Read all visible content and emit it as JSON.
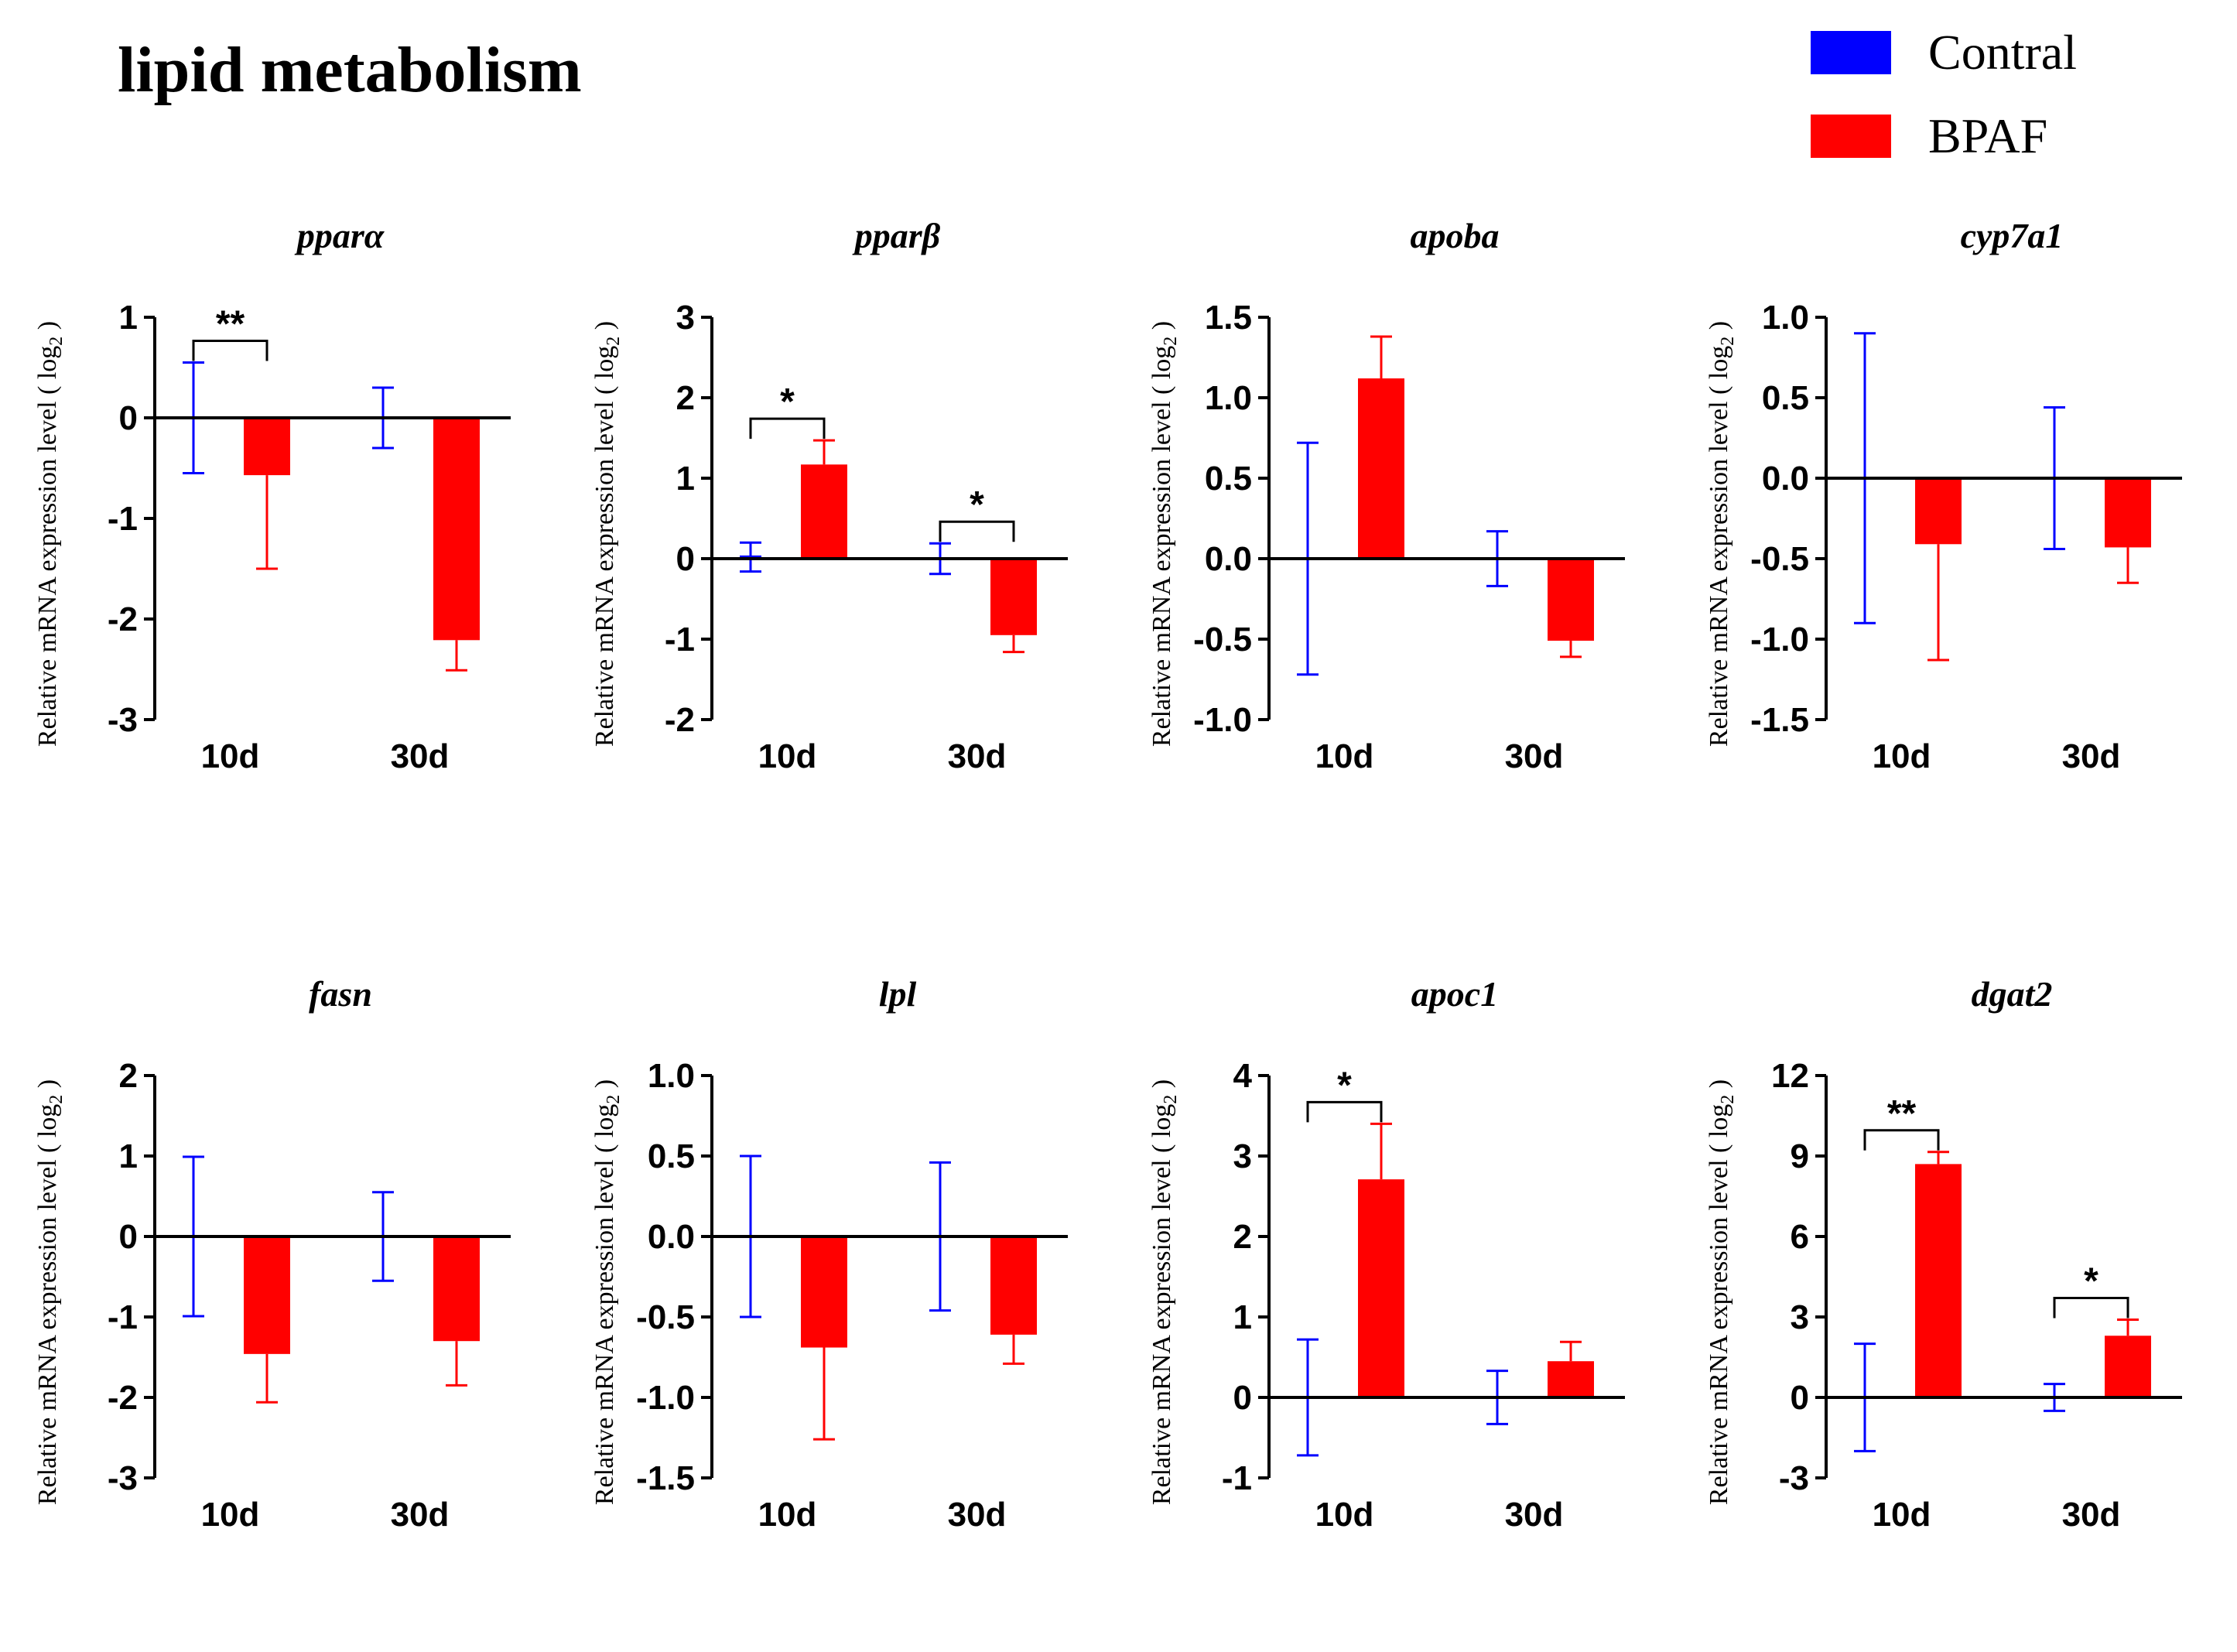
{
  "title": "lipid metabolism",
  "legend": [
    {
      "label": "Contral",
      "color": "#0000FF"
    },
    {
      "label": "BPAF",
      "color": "#FF0000"
    }
  ],
  "colors": {
    "control": "#0000FF",
    "bpaf": "#FF0000",
    "axis": "#000000"
  },
  "chart_data": [
    {
      "type": "bar",
      "title": "pparα",
      "ylabel": "Relative mRNA expression level ( log",
      "ylabel_sub": "2",
      "ylabel_end": " )",
      "categories": [
        "10d",
        "30d"
      ],
      "ylim": [
        -3,
        1
      ],
      "ticks": [
        "-3",
        "-2",
        "-1",
        "0",
        "1"
      ],
      "series": [
        {
          "name": "Contral",
          "values": [
            0,
            0
          ],
          "errors": [
            0.55,
            0.3
          ]
        },
        {
          "name": "BPAF",
          "values": [
            -0.57,
            -2.21
          ],
          "errors": [
            0.93,
            0.3
          ]
        }
      ],
      "significance": [
        {
          "category": "10d",
          "label": "**"
        }
      ]
    },
    {
      "type": "bar",
      "title": "pparβ",
      "ylabel": "Relative mRNA expression level ( log",
      "ylabel_sub": "2",
      "ylabel_end": " )",
      "categories": [
        "10d",
        "30d"
      ],
      "ylim": [
        -2,
        3
      ],
      "ticks": [
        "-2",
        "-1",
        "0",
        "1",
        "2",
        "3"
      ],
      "series": [
        {
          "name": "Contral",
          "values": [
            0.02,
            0
          ],
          "errors": [
            0.18,
            0.19
          ]
        },
        {
          "name": "BPAF",
          "values": [
            1.17,
            -0.95
          ],
          "errors": [
            0.3,
            0.21
          ]
        }
      ],
      "significance": [
        {
          "category": "10d",
          "label": "*"
        },
        {
          "category": "30d",
          "label": "*"
        }
      ]
    },
    {
      "type": "bar",
      "title": "apoba",
      "ylabel": "Relative mRNA expression level ( log",
      "ylabel_sub": "2",
      "ylabel_end": " )",
      "categories": [
        "10d",
        "30d"
      ],
      "ylim": [
        -1.0,
        1.5
      ],
      "ticks": [
        "-1.0",
        "-0.5",
        "0.0",
        "0.5",
        "1.0",
        "1.5"
      ],
      "series": [
        {
          "name": "Contral",
          "values": [
            0,
            0
          ],
          "errors": [
            0.72,
            0.17
          ]
        },
        {
          "name": "BPAF",
          "values": [
            1.12,
            -0.51
          ],
          "errors": [
            0.26,
            0.1
          ]
        }
      ],
      "significance": []
    },
    {
      "type": "bar",
      "title": "cyp7a1",
      "ylabel": "Relative mRNA expression level ( log",
      "ylabel_sub": "2",
      "ylabel_end": " )",
      "categories": [
        "10d",
        "30d"
      ],
      "ylim": [
        -1.5,
        1.0
      ],
      "ticks": [
        "-1.5",
        "-1.0",
        "-0.5",
        "0.0",
        "0.5",
        "1.0"
      ],
      "series": [
        {
          "name": "Contral",
          "values": [
            0,
            0
          ],
          "errors": [
            0.9,
            0.44
          ]
        },
        {
          "name": "BPAF",
          "values": [
            -0.41,
            -0.43
          ],
          "errors": [
            0.72,
            0.22
          ]
        }
      ],
      "significance": []
    },
    {
      "type": "bar",
      "title": "fasn",
      "ylabel": "Relative mRNA expression level ( log",
      "ylabel_sub": "2",
      "ylabel_end": " )",
      "categories": [
        "10d",
        "30d"
      ],
      "ylim": [
        -3,
        2
      ],
      "ticks": [
        "-3",
        "-2",
        "-1",
        "0",
        "1",
        "2"
      ],
      "series": [
        {
          "name": "Contral",
          "values": [
            0,
            0
          ],
          "errors": [
            0.99,
            0.55
          ]
        },
        {
          "name": "BPAF",
          "values": [
            -1.46,
            -1.3
          ],
          "errors": [
            0.6,
            0.55
          ]
        }
      ],
      "significance": []
    },
    {
      "type": "bar",
      "title": "lpl",
      "ylabel": "Relative mRNA expression level ( log",
      "ylabel_sub": "2",
      "ylabel_end": " )",
      "categories": [
        "10d",
        "30d"
      ],
      "ylim": [
        -1.5,
        1.0
      ],
      "ticks": [
        "-1.5",
        "-1.0",
        "-0.5",
        "0.0",
        "0.5",
        "1.0"
      ],
      "series": [
        {
          "name": "Contral",
          "values": [
            0,
            0
          ],
          "errors": [
            0.5,
            0.46
          ]
        },
        {
          "name": "BPAF",
          "values": [
            -0.69,
            -0.61
          ],
          "errors": [
            0.57,
            0.18
          ]
        }
      ],
      "significance": []
    },
    {
      "type": "bar",
      "title": "apoc1",
      "ylabel": "Relative mRNA expression level ( log",
      "ylabel_sub": "2",
      "ylabel_end": " )",
      "categories": [
        "10d",
        "30d"
      ],
      "ylim": [
        -1,
        4
      ],
      "ticks": [
        "-1",
        "0",
        "1",
        "2",
        "3",
        "4"
      ],
      "series": [
        {
          "name": "Contral",
          "values": [
            0,
            0
          ],
          "errors": [
            0.72,
            0.33
          ]
        },
        {
          "name": "BPAF",
          "values": [
            2.71,
            0.45
          ],
          "errors": [
            0.69,
            0.24
          ]
        }
      ],
      "significance": [
        {
          "category": "10d",
          "label": "*"
        }
      ]
    },
    {
      "type": "bar",
      "title": "dgat2",
      "ylabel": "Relative mRNA expression level ( log",
      "ylabel_sub": "2",
      "ylabel_end": " )",
      "categories": [
        "10d",
        "30d"
      ],
      "ylim": [
        -3,
        12
      ],
      "ticks": [
        "-3",
        "0",
        "3",
        "6",
        "9",
        "12"
      ],
      "series": [
        {
          "name": "Contral",
          "values": [
            0,
            0
          ],
          "errors": [
            2.0,
            0.5
          ]
        },
        {
          "name": "BPAF",
          "values": [
            8.7,
            2.3
          ],
          "errors": [
            0.45,
            0.6
          ]
        }
      ],
      "significance": [
        {
          "category": "10d",
          "label": "**"
        },
        {
          "category": "30d",
          "label": "*"
        }
      ]
    }
  ]
}
